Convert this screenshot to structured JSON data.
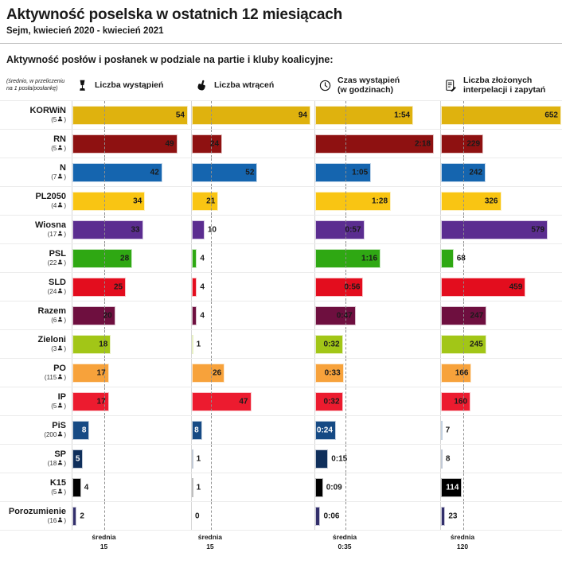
{
  "header": {
    "title": "Aktywność poselska w ostatnich 12 miesiącach",
    "subtitle": "Sejm, kwiecień 2020 - kwiecień 2021",
    "section_heading": "Aktywność posłów i posłanek w podziale na partie i kluby koalicyjne:",
    "note_lines": [
      "(średnio, w przeliczeniu",
      "na 1 posła/posłankę)"
    ]
  },
  "icons": {
    "person": "person-icon",
    "column_icons": [
      "microphone-icon",
      "raised-hand-icon",
      "clock-icon",
      "document-pencil-icon"
    ]
  },
  "chart_data": {
    "type": "bar",
    "orientation": "horizontal",
    "grid": "off",
    "columns": [
      {
        "id": "wystapienia",
        "label_lines": [
          "Liczba wystąpień"
        ],
        "icon": "microphone-icon",
        "xlim": [
          0,
          54
        ],
        "max": 54,
        "average": 15,
        "average_label": "średnia",
        "average_display": "15"
      },
      {
        "id": "wtracenia",
        "label_lines": [
          "Liczba wtrąceń"
        ],
        "icon": "raised-hand-icon",
        "xlim": [
          0,
          94
        ],
        "max": 94,
        "average": 15,
        "average_label": "średnia",
        "average_display": "15"
      },
      {
        "id": "czas",
        "label_lines": [
          "Czas wystąpień",
          "(w godzinach)"
        ],
        "icon": "clock-icon",
        "xlim": [
          0,
          138
        ],
        "max": 138,
        "average": 35,
        "average_label": "średnia",
        "average_display": "0:35"
      },
      {
        "id": "interpelacje",
        "label_lines": [
          "Liczba złożonych",
          "interpelacji i zapytań"
        ],
        "icon": "document-pencil-icon",
        "xlim": [
          0,
          652
        ],
        "max": 652,
        "average": 120,
        "average_label": "średnia",
        "average_display": "120"
      }
    ],
    "parties": [
      {
        "name": "KORWiN",
        "members": 5,
        "color": "#dfb20e",
        "cells": [
          {
            "value": 54,
            "display": "54",
            "inside": true
          },
          {
            "value": 94,
            "display": "94",
            "inside": true
          },
          {
            "value": 114,
            "display": "1:54",
            "inside": true
          },
          {
            "value": 652,
            "display": "652",
            "inside": true
          }
        ]
      },
      {
        "name": "RN",
        "members": 5,
        "color": "#8e1111",
        "cells": [
          {
            "value": 49,
            "display": "49",
            "inside": true
          },
          {
            "value": 24,
            "display": "24",
            "inside": true
          },
          {
            "value": 138,
            "display": "2:18",
            "inside": true
          },
          {
            "value": 229,
            "display": "229",
            "inside": true
          }
        ]
      },
      {
        "name": "N",
        "members": 7,
        "color": "#1565af",
        "cells": [
          {
            "value": 42,
            "display": "42",
            "inside": true
          },
          {
            "value": 52,
            "display": "52",
            "inside": true
          },
          {
            "value": 65,
            "display": "1:05",
            "inside": true
          },
          {
            "value": 242,
            "display": "242",
            "inside": true
          }
        ]
      },
      {
        "name": "PL2050",
        "members": 4,
        "color": "#f9c513",
        "cells": [
          {
            "value": 34,
            "display": "34",
            "inside": true
          },
          {
            "value": 21,
            "display": "21",
            "inside": true
          },
          {
            "value": 88,
            "display": "1:28",
            "inside": true
          },
          {
            "value": 326,
            "display": "326",
            "inside": true
          }
        ]
      },
      {
        "name": "Wiosna",
        "members": 17,
        "color": "#5b2d90",
        "cells": [
          {
            "value": 33,
            "display": "33",
            "inside": true
          },
          {
            "value": 10,
            "display": "10",
            "inside": false
          },
          {
            "value": 57,
            "display": "0:57",
            "inside": true
          },
          {
            "value": 579,
            "display": "579",
            "inside": true
          }
        ]
      },
      {
        "name": "PSL",
        "members": 22,
        "color": "#2fa813",
        "cells": [
          {
            "value": 28,
            "display": "28",
            "inside": true
          },
          {
            "value": 4,
            "display": "4",
            "inside": false
          },
          {
            "value": 76,
            "display": "1:16",
            "inside": true
          },
          {
            "value": 68,
            "display": "68",
            "inside": false
          }
        ]
      },
      {
        "name": "SLD",
        "members": 24,
        "color": "#e30d1e",
        "cells": [
          {
            "value": 25,
            "display": "25",
            "inside": true
          },
          {
            "value": 4,
            "display": "4",
            "inside": false
          },
          {
            "value": 56,
            "display": "0:56",
            "inside": true
          },
          {
            "value": 459,
            "display": "459",
            "inside": true
          }
        ]
      },
      {
        "name": "Razem",
        "members": 6,
        "color": "#6e0f3f",
        "cells": [
          {
            "value": 20,
            "display": "20",
            "inside": true
          },
          {
            "value": 4,
            "display": "4",
            "inside": false
          },
          {
            "value": 47,
            "display": "0:47",
            "inside": true
          },
          {
            "value": 247,
            "display": "247",
            "inside": true
          }
        ]
      },
      {
        "name": "Zieloni",
        "members": 3,
        "color": "#a2c617",
        "cells": [
          {
            "value": 18,
            "display": "18",
            "inside": true
          },
          {
            "value": 1,
            "display": "1",
            "inside": false
          },
          {
            "value": 32,
            "display": "0:32",
            "inside": true
          },
          {
            "value": 245,
            "display": "245",
            "inside": true
          }
        ]
      },
      {
        "name": "PO",
        "members": 115,
        "color": "#f7a23b",
        "cells": [
          {
            "value": 17,
            "display": "17",
            "inside": true
          },
          {
            "value": 26,
            "display": "26",
            "inside": true
          },
          {
            "value": 33,
            "display": "0:33",
            "inside": true
          },
          {
            "value": 166,
            "display": "166",
            "inside": true
          }
        ]
      },
      {
        "name": "IP",
        "members": 5,
        "color": "#ec1b2f",
        "cells": [
          {
            "value": 17,
            "display": "17",
            "inside": true
          },
          {
            "value": 47,
            "display": "47",
            "inside": true
          },
          {
            "value": 32,
            "display": "0:32",
            "inside": true
          },
          {
            "value": 160,
            "display": "160",
            "inside": true
          }
        ]
      },
      {
        "name": "PiS",
        "members": 200,
        "color": "#164a84",
        "inside_text": "#ffffff",
        "cells": [
          {
            "value": 8,
            "display": "8",
            "inside": true
          },
          {
            "value": 8,
            "display": "8",
            "inside": true
          },
          {
            "value": 24,
            "display": "0:24",
            "inside": true
          },
          {
            "value": 7,
            "display": "7",
            "inside": false
          }
        ]
      },
      {
        "name": "SP",
        "members": 18,
        "color": "#0f2f5b",
        "inside_text": "#ffffff",
        "cells": [
          {
            "value": 5,
            "display": "5",
            "inside": true
          },
          {
            "value": 1,
            "display": "1",
            "inside": false
          },
          {
            "value": 15,
            "display": "0:15",
            "inside": false
          },
          {
            "value": 8,
            "display": "8",
            "inside": false
          }
        ]
      },
      {
        "name": "K15",
        "members": 5,
        "color": "#000000",
        "inside_text": "#ffffff",
        "cells": [
          {
            "value": 4,
            "display": "4",
            "inside": false
          },
          {
            "value": 1,
            "display": "1",
            "inside": false
          },
          {
            "value": 9,
            "display": "0:09",
            "inside": false
          },
          {
            "value": 114,
            "display": "114",
            "inside": true
          }
        ]
      },
      {
        "name": "Porozumienie",
        "members": 16,
        "color": "#322f6b",
        "cells": [
          {
            "value": 2,
            "display": "2",
            "inside": false
          },
          {
            "value": 0,
            "display": "0",
            "inside": false
          },
          {
            "value": 6,
            "display": "0:06",
            "inside": false
          },
          {
            "value": 23,
            "display": "23",
            "inside": false
          }
        ]
      }
    ]
  }
}
